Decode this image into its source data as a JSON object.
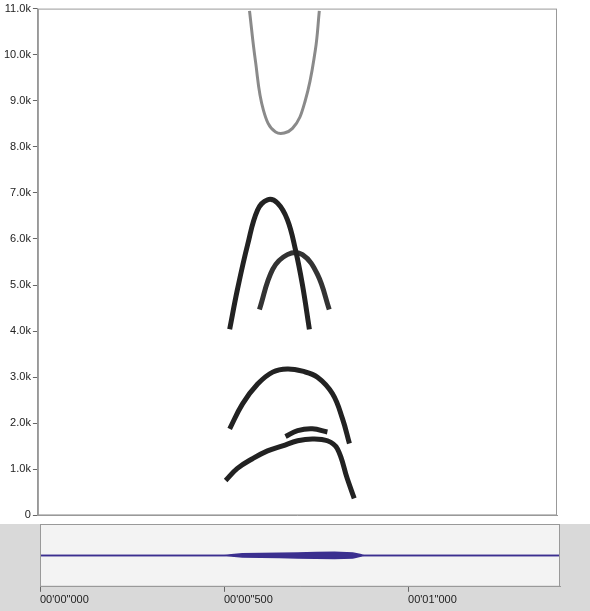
{
  "chart_data": [
    {
      "type": "line",
      "xlim": [
        0,
        1.413
      ],
      "ylim": [
        0,
        11000
      ],
      "yticks": [
        0,
        {
          "value": 1000,
          "label": "1.0k"
        },
        {
          "value": 2000,
          "label": "2.0k"
        },
        {
          "value": 3000,
          "label": "3.0k"
        },
        {
          "value": 4000,
          "label": "4.0k"
        },
        {
          "value": 5000,
          "label": "5.0k"
        },
        {
          "value": 6000,
          "label": "6.0k"
        },
        {
          "value": 7000,
          "label": "7.0k"
        },
        {
          "value": 8000,
          "label": "8.0k"
        },
        {
          "value": 9000,
          "label": "9.0k"
        },
        {
          "value": 10000,
          "label": "10.0k"
        },
        {
          "value": 11000,
          "label": "11.0k"
        }
      ],
      "tick_labels": "y",
      "grid": false,
      "series": [
        {
          "color": "#222222",
          "x": [
            0.511,
            0.543,
            0.584,
            0.625,
            0.666,
            0.707,
            0.747,
            0.788,
            0.815,
            0.842,
            0.861
          ],
          "values": [
            760,
            1020,
            1230,
            1400,
            1510,
            1620,
            1660,
            1620,
            1450,
            800,
            370
          ]
        },
        {
          "color": "#222222",
          "x": [
            0.522,
            0.557,
            0.598,
            0.639,
            0.679,
            0.72,
            0.761,
            0.802,
            0.829,
            0.848
          ],
          "values": [
            1880,
            2420,
            2850,
            3110,
            3180,
            3130,
            3000,
            2640,
            2100,
            1560
          ]
        },
        {
          "color": "#222222",
          "x": [
            0.674,
            0.707,
            0.747,
            0.788
          ],
          "values": [
            1710,
            1840,
            1880,
            1810
          ]
        },
        {
          "color": "#222222",
          "x": [
            0.522,
            0.543,
            0.571,
            0.598,
            0.625,
            0.652,
            0.679,
            0.701,
            0.72,
            0.739
          ],
          "values": [
            4040,
            4900,
            5880,
            6630,
            6850,
            6780,
            6420,
            5770,
            5010,
            4040
          ]
        },
        {
          "color": "#333333",
          "x": [
            0.603,
            0.639,
            0.679,
            0.72,
            0.761,
            0.793
          ],
          "values": [
            4470,
            5340,
            5660,
            5660,
            5230,
            4470
          ]
        },
        {
          "color": "#8a8a8a",
          "x": [
            0.576,
            0.592,
            0.614,
            0.647,
            0.693,
            0.728,
            0.755,
            0.766
          ],
          "values": [
            10950,
            9870,
            8790,
            8320,
            8400,
            9010,
            10090,
            10950
          ]
        }
      ]
    },
    {
      "type": "area",
      "xlim": [
        0,
        1.413
      ],
      "ylim": [
        -1,
        1
      ],
      "xticks": [
        {
          "value": 0,
          "label": "00'00\"000"
        },
        {
          "value": 0.5,
          "label": "00'00\"500"
        },
        {
          "value": 1,
          "label": "00'01\"000"
        }
      ],
      "tick_labels": "x",
      "grid": false,
      "series": [
        {
          "color": "#3b2f8f",
          "x": [
            0,
            0.5,
            0.52,
            0.55,
            0.6,
            0.65,
            0.7,
            0.75,
            0.8,
            0.85,
            0.87,
            0.88,
            0.9,
            1.413
          ],
          "values": [
            0,
            0,
            0.02,
            0.05,
            0.06,
            0.07,
            0.08,
            0.09,
            0.1,
            0.08,
            0.03,
            0,
            0,
            0
          ]
        },
        {
          "color": "#3b2f8f",
          "x": [
            0,
            0.5,
            0.52,
            0.55,
            0.6,
            0.65,
            0.7,
            0.75,
            0.8,
            0.85,
            0.87,
            0.88,
            0.9,
            1.413
          ],
          "values": [
            0,
            0,
            -0.02,
            -0.05,
            -0.06,
            -0.07,
            -0.08,
            -0.09,
            -0.1,
            -0.08,
            -0.03,
            0,
            0,
            0
          ]
        }
      ]
    }
  ]
}
